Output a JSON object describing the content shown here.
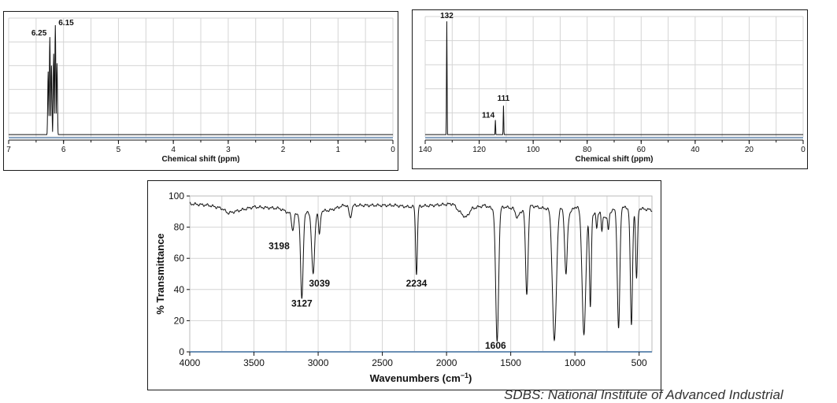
{
  "charts": [
    {
      "type": "line",
      "xlabel": "Chemical shift (ppm)",
      "xlim": [
        7,
        0
      ],
      "x_ticks": [
        7,
        6,
        5,
        4,
        3,
        2,
        1,
        0
      ],
      "ylim": [
        0,
        100
      ],
      "peaks": [
        {
          "x": 6.28,
          "y": 55,
          "width": 0.012
        },
        {
          "x": 6.25,
          "y": 84,
          "width": 0.012
        },
        {
          "x": 6.22,
          "y": 60,
          "width": 0.012
        },
        {
          "x": 6.18,
          "y": 70,
          "width": 0.012
        },
        {
          "x": 6.15,
          "y": 94,
          "width": 0.012
        },
        {
          "x": 6.12,
          "y": 62,
          "width": 0.012
        }
      ],
      "annotations": [
        {
          "text": "6.25",
          "x": 6.25,
          "y": 84
        },
        {
          "text": "6.15",
          "x": 6.15,
          "y": 94
        }
      ]
    },
    {
      "type": "line",
      "xlabel": "Chemical shift (ppm)",
      "xlim": [
        140,
        0
      ],
      "x_ticks": [
        140,
        120,
        100,
        80,
        60,
        40,
        20,
        0
      ],
      "ylim": [
        0,
        100
      ],
      "peaks": [
        {
          "x": 132,
          "y": 96,
          "width": 0.15
        },
        {
          "x": 114,
          "y": 14,
          "width": 0.15
        },
        {
          "x": 111,
          "y": 26,
          "width": 0.15
        }
      ],
      "annotations": [
        {
          "text": "132",
          "x": 132,
          "y": 96
        },
        {
          "text": "114",
          "x": 114,
          "y": 14
        },
        {
          "text": "111",
          "x": 111,
          "y": 26
        }
      ]
    },
    {
      "type": "line",
      "xlabel": "Wavenumbers (cm",
      "xlabel_sup": "−1",
      "xlabel_close": ")",
      "ylabel": "% Transmittance",
      "xlim": [
        4000,
        400
      ],
      "x_ticks": [
        4000,
        3500,
        3000,
        2500,
        2000,
        1500,
        1000,
        500
      ],
      "ylim": [
        0,
        100
      ],
      "y_ticks": [
        0,
        20,
        40,
        60,
        80,
        100
      ],
      "baseline": [
        [
          4000,
          95
        ],
        [
          3850,
          94
        ],
        [
          3750,
          92
        ],
        [
          3700,
          89
        ],
        [
          3650,
          90
        ],
        [
          3500,
          93
        ],
        [
          3300,
          92
        ],
        [
          3200,
          88
        ],
        [
          2900,
          91
        ],
        [
          2800,
          94
        ],
        [
          2600,
          94
        ],
        [
          2400,
          94
        ],
        [
          2300,
          93
        ],
        [
          2100,
          94
        ],
        [
          1950,
          95
        ],
        [
          1900,
          90
        ],
        [
          1850,
          86
        ],
        [
          1800,
          92
        ],
        [
          1700,
          94
        ],
        [
          1650,
          92
        ],
        [
          1550,
          93
        ],
        [
          1480,
          92
        ],
        [
          1450,
          86
        ],
        [
          1400,
          92
        ],
        [
          1350,
          94
        ],
        [
          1300,
          93
        ],
        [
          1240,
          92
        ],
        [
          1100,
          92
        ],
        [
          1050,
          88
        ],
        [
          1000,
          93
        ],
        [
          950,
          92
        ],
        [
          880,
          88
        ],
        [
          800,
          90
        ],
        [
          760,
          86
        ],
        [
          720,
          90
        ],
        [
          680,
          92
        ],
        [
          640,
          94
        ],
        [
          600,
          92
        ],
        [
          500,
          92
        ],
        [
          400,
          91
        ]
      ],
      "bands": [
        {
          "x": 3198,
          "depth": 10,
          "width": 12
        },
        {
          "x": 3127,
          "depth": 55,
          "width": 14
        },
        {
          "x": 3039,
          "depth": 40,
          "width": 16
        },
        {
          "x": 2990,
          "depth": 15,
          "width": 10
        },
        {
          "x": 2750,
          "depth": 8,
          "width": 14
        },
        {
          "x": 2234,
          "depth": 43,
          "width": 10
        },
        {
          "x": 1606,
          "depth": 86,
          "width": 16
        },
        {
          "x": 1375,
          "depth": 56,
          "width": 14
        },
        {
          "x": 1160,
          "depth": 85,
          "width": 22
        },
        {
          "x": 1070,
          "depth": 40,
          "width": 14
        },
        {
          "x": 930,
          "depth": 80,
          "width": 20
        },
        {
          "x": 880,
          "depth": 60,
          "width": 10
        },
        {
          "x": 830,
          "depth": 10,
          "width": 8
        },
        {
          "x": 790,
          "depth": 12,
          "width": 8
        },
        {
          "x": 740,
          "depth": 10,
          "width": 8
        },
        {
          "x": 660,
          "depth": 78,
          "width": 14
        },
        {
          "x": 560,
          "depth": 75,
          "width": 12
        },
        {
          "x": 520,
          "depth": 45,
          "width": 10
        }
      ],
      "annotations": [
        {
          "text": "3198",
          "x": 3198,
          "y": 66
        },
        {
          "text": "3127",
          "x": 3127,
          "y": 29
        },
        {
          "text": "3039",
          "x": 3039,
          "y": 42
        },
        {
          "text": "2234",
          "x": 2234,
          "y": 42
        },
        {
          "text": "1606",
          "x": 1606,
          "y": 2
        }
      ]
    }
  ],
  "credit": "SDBS: National Institute of Advanced Industrial"
}
